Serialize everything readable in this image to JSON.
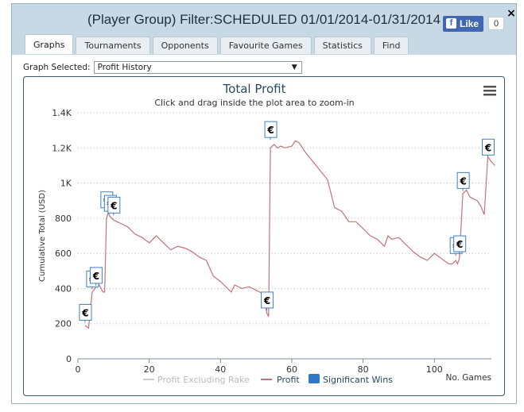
{
  "window": {
    "title": "(Player Group) Filter:SCHEDULED 01/01/2014-01/31/2014",
    "close_glyph": "×"
  },
  "facebook": {
    "like_label": "Like",
    "count": "0"
  },
  "tabs": [
    {
      "label": "Graphs",
      "active": true
    },
    {
      "label": "Tournaments",
      "active": false
    },
    {
      "label": "Opponents",
      "active": false
    },
    {
      "label": "Favourite Games",
      "active": false
    },
    {
      "label": "Statistics",
      "active": false
    },
    {
      "label": "Find",
      "active": false
    }
  ],
  "graph_select": {
    "label": "Graph Selected:",
    "value": "Profit History"
  },
  "colors": {
    "profit": "#c4737a",
    "excl_rake": "#cccccc",
    "wins": "#2e78c7",
    "title": "#274b5e"
  },
  "chart_data": {
    "type": "line",
    "title": "Total Profit",
    "subtitle": "Click and drag inside the plot area to zoom-in",
    "xlabel": "No. Games",
    "ylabel": "Cumulative Total (USD)",
    "xlim": [
      0,
      116
    ],
    "ylim": [
      0,
      1400
    ],
    "x_ticks": [
      "0",
      "20",
      "40",
      "60",
      "80",
      "100"
    ],
    "x_tick_values": [
      0,
      20,
      40,
      60,
      80,
      100
    ],
    "y_ticks": [
      "0",
      "200",
      "400",
      "600",
      "800",
      "1K",
      "1.2K",
      "1.4K"
    ],
    "y_tick_values": [
      0,
      200,
      400,
      600,
      800,
      1000,
      1200,
      1400
    ],
    "legend": [
      "Profit Excluding Rake",
      "Profit",
      "Significant Wins"
    ],
    "legend_position": "bottom",
    "grid": "horizontal-dotted",
    "series": [
      {
        "name": "Profit",
        "points": [
          [
            2,
            190
          ],
          [
            3,
            175
          ],
          [
            4,
            380
          ],
          [
            5,
            405
          ],
          [
            6,
            420
          ],
          [
            7,
            380
          ],
          [
            7.5,
            380
          ],
          [
            8,
            800
          ],
          [
            8.5,
            830
          ],
          [
            9,
            810
          ],
          [
            10,
            790
          ],
          [
            11,
            780
          ],
          [
            12,
            770
          ],
          [
            14,
            750
          ],
          [
            16,
            710
          ],
          [
            18,
            690
          ],
          [
            20,
            660
          ],
          [
            22,
            700
          ],
          [
            24,
            660
          ],
          [
            26,
            620
          ],
          [
            28,
            640
          ],
          [
            30,
            630
          ],
          [
            32,
            610
          ],
          [
            34,
            580
          ],
          [
            36,
            560
          ],
          [
            38,
            470
          ],
          [
            40,
            440
          ],
          [
            42,
            400
          ],
          [
            43,
            380
          ],
          [
            44,
            420
          ],
          [
            46,
            400
          ],
          [
            48,
            410
          ],
          [
            50,
            390
          ],
          [
            52,
            370
          ],
          [
            53,
            260
          ],
          [
            53.5,
            240
          ],
          [
            54,
            1200
          ],
          [
            55,
            1220
          ],
          [
            56,
            1200
          ],
          [
            57,
            1210
          ],
          [
            58,
            1200
          ],
          [
            60,
            1210
          ],
          [
            61,
            1240
          ],
          [
            62,
            1230
          ],
          [
            64,
            1170
          ],
          [
            66,
            1120
          ],
          [
            68,
            1070
          ],
          [
            70,
            1020
          ],
          [
            72,
            860
          ],
          [
            74,
            840
          ],
          [
            76,
            780
          ],
          [
            78,
            780
          ],
          [
            80,
            740
          ],
          [
            82,
            700
          ],
          [
            84,
            680
          ],
          [
            86,
            640
          ],
          [
            87,
            700
          ],
          [
            88,
            680
          ],
          [
            90,
            690
          ],
          [
            92,
            650
          ],
          [
            94,
            610
          ],
          [
            96,
            580
          ],
          [
            98,
            560
          ],
          [
            100,
            600
          ],
          [
            102,
            570
          ],
          [
            104,
            540
          ],
          [
            105,
            540
          ],
          [
            106,
            560
          ],
          [
            106.5,
            540
          ],
          [
            107,
            570
          ],
          [
            108,
            940
          ],
          [
            109,
            960
          ],
          [
            110,
            920
          ],
          [
            112,
            900
          ],
          [
            113,
            870
          ],
          [
            114,
            820
          ],
          [
            115,
            1150
          ],
          [
            116,
            1120
          ],
          [
            117,
            1100
          ]
        ]
      }
    ],
    "significant_wins": [
      [
        2,
        260
      ],
      [
        4,
        450
      ],
      [
        5,
        470
      ],
      [
        8,
        900
      ],
      [
        9,
        880
      ],
      [
        10,
        870
      ],
      [
        54,
        1300
      ],
      [
        53,
        330
      ],
      [
        106,
        640
      ],
      [
        107,
        650
      ],
      [
        108,
        1010
      ],
      [
        115,
        1200
      ]
    ],
    "win_marker_glyph": "€"
  },
  "menu_icon": "hamburger-menu-icon"
}
